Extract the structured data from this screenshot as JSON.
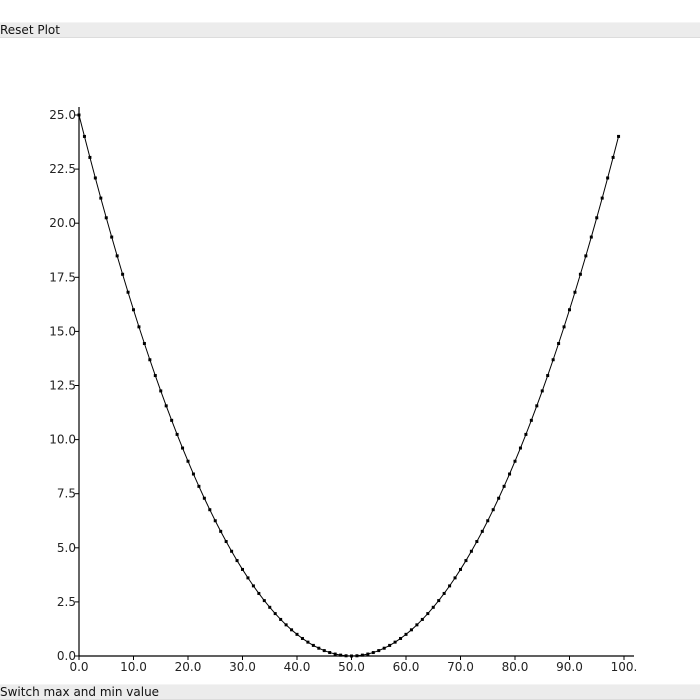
{
  "buttons": {
    "reset_label": "Reset Plot",
    "switch_label": "Switch max and min value"
  },
  "chart_data": {
    "type": "line",
    "title": "",
    "xlabel": "",
    "ylabel": "",
    "xlim": [
      0,
      100
    ],
    "ylim": [
      0,
      25
    ],
    "x_ticks": [
      "0.0",
      "10.0",
      "20.0",
      "30.0",
      "40.0",
      "50.0",
      "60.0",
      "70.0",
      "80.0",
      "90.0",
      "100."
    ],
    "y_ticks": [
      "0.0",
      "2.5",
      "5.0",
      "7.5",
      "10.0",
      "12.5",
      "15.0",
      "17.5",
      "20.0",
      "22.5",
      "25.0"
    ],
    "grid": false,
    "line_color": "#000000",
    "marker": "square",
    "series": [
      {
        "x": [
          0,
          1,
          2,
          3,
          4,
          5,
          6,
          7,
          8,
          9,
          10,
          11,
          12,
          13,
          14,
          15,
          16,
          17,
          18,
          19,
          20,
          21,
          22,
          23,
          24,
          25,
          26,
          27,
          28,
          29,
          30,
          31,
          32,
          33,
          34,
          35,
          36,
          37,
          38,
          39,
          40,
          41,
          42,
          43,
          44,
          45,
          46,
          47,
          48,
          49,
          50,
          51,
          52,
          53,
          54,
          55,
          56,
          57,
          58,
          59,
          60,
          61,
          62,
          63,
          64,
          65,
          66,
          67,
          68,
          69,
          70,
          71,
          72,
          73,
          74,
          75,
          76,
          77,
          78,
          79,
          80,
          81,
          82,
          83,
          84,
          85,
          86,
          87,
          88,
          89,
          90,
          91,
          92,
          93,
          94,
          95,
          96,
          97,
          98,
          99
        ],
        "y": [
          25.0,
          24.01,
          23.04,
          22.09,
          21.16,
          20.25,
          19.36,
          18.49,
          17.64,
          16.81,
          16.0,
          15.21,
          14.44,
          13.69,
          12.96,
          12.25,
          11.56,
          10.89,
          10.24,
          9.61,
          9.0,
          8.41,
          7.84,
          7.29,
          6.76,
          6.25,
          5.76,
          5.29,
          4.84,
          4.41,
          4.0,
          3.61,
          3.24,
          2.89,
          2.56,
          2.25,
          1.96,
          1.69,
          1.44,
          1.21,
          1.0,
          0.81,
          0.64,
          0.49,
          0.36,
          0.25,
          0.16,
          0.09,
          0.04,
          0.01,
          0.0,
          0.01,
          0.04,
          0.09,
          0.16,
          0.25,
          0.36,
          0.49,
          0.64,
          0.81,
          1.0,
          1.21,
          1.44,
          1.69,
          1.96,
          2.25,
          2.56,
          2.89,
          3.24,
          3.61,
          4.0,
          4.41,
          4.84,
          5.29,
          5.76,
          6.25,
          6.76,
          7.29,
          7.84,
          8.41,
          9.0,
          9.61,
          10.24,
          10.89,
          11.56,
          12.25,
          12.96,
          13.69,
          14.44,
          15.21,
          16.0,
          16.81,
          17.64,
          18.49,
          19.36,
          20.25,
          21.16,
          22.09,
          23.04,
          24.01
        ]
      }
    ]
  }
}
